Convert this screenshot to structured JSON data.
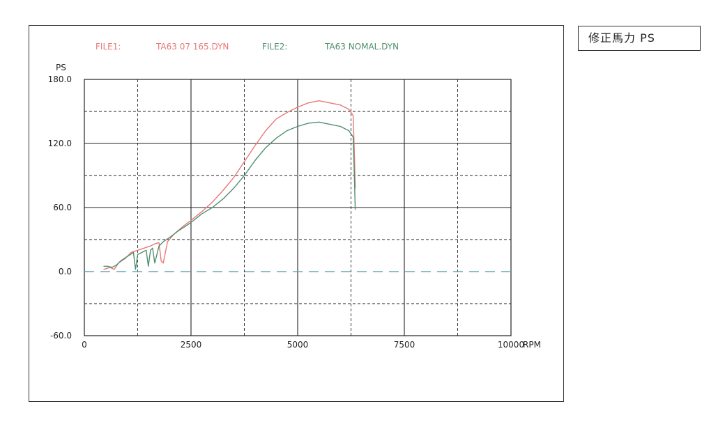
{
  "title_box": "修正馬力 PS",
  "header": {
    "file1_label": "FILE1:",
    "file1_name": "TA63 07 165.DYN",
    "file2_label": "FILE2:",
    "file2_name": "TA63 NOMAL.DYN"
  },
  "colors": {
    "file1": "#e87878",
    "file2": "#4f8f6e",
    "zero_line": "#6aa6bf",
    "grid": "#222222",
    "frame": "#222222"
  },
  "chart_data": {
    "type": "line",
    "ylabel": "PS",
    "xlabel": "RPM",
    "xlim": [
      0,
      10000
    ],
    "ylim": [
      -60,
      180
    ],
    "x_ticks": [
      0,
      2500,
      5000,
      7500,
      10000
    ],
    "x_tick_labels": [
      "0",
      "2500",
      "5000",
      "7500",
      "10000"
    ],
    "y_ticks": [
      180,
      120,
      60,
      0,
      -60
    ],
    "y_tick_labels": [
      "180.0",
      "120.0",
      "60.0",
      "0.0",
      "-60.0"
    ],
    "grid": true,
    "series": [
      {
        "name": "TA63 07 165.DYN",
        "x": [
          450,
          600,
          700,
          800,
          950,
          1100,
          1250,
          1400,
          1550,
          1650,
          1750,
          1800,
          1850,
          1950,
          2100,
          2300,
          2500,
          2750,
          3000,
          3250,
          3500,
          3750,
          4000,
          4250,
          4500,
          4750,
          5000,
          5250,
          5500,
          5750,
          6000,
          6200,
          6300,
          6330,
          6350
        ],
        "values": [
          2,
          4,
          2,
          8,
          12,
          18,
          20,
          22,
          24,
          26,
          27,
          10,
          8,
          28,
          35,
          42,
          48,
          56,
          65,
          76,
          88,
          103,
          118,
          132,
          143,
          149,
          154,
          158,
          160,
          158,
          156,
          152,
          146,
          110,
          78
        ]
      },
      {
        "name": "TA63 NOMAL.DYN",
        "x": [
          450,
          550,
          650,
          750,
          850,
          1000,
          1150,
          1200,
          1250,
          1350,
          1450,
          1500,
          1550,
          1600,
          1650,
          1750,
          1850,
          2000,
          2200,
          2500,
          2750,
          3000,
          3250,
          3500,
          3750,
          4000,
          4250,
          4500,
          4750,
          5000,
          5250,
          5500,
          5750,
          6000,
          6200,
          6300,
          6330,
          6350
        ],
        "values": [
          5,
          5,
          4,
          6,
          10,
          14,
          18,
          2,
          16,
          18,
          20,
          5,
          20,
          22,
          8,
          24,
          28,
          32,
          38,
          46,
          54,
          60,
          68,
          78,
          90,
          104,
          116,
          125,
          132,
          136,
          139,
          140,
          138,
          136,
          132,
          126,
          88,
          58
        ]
      }
    ]
  }
}
